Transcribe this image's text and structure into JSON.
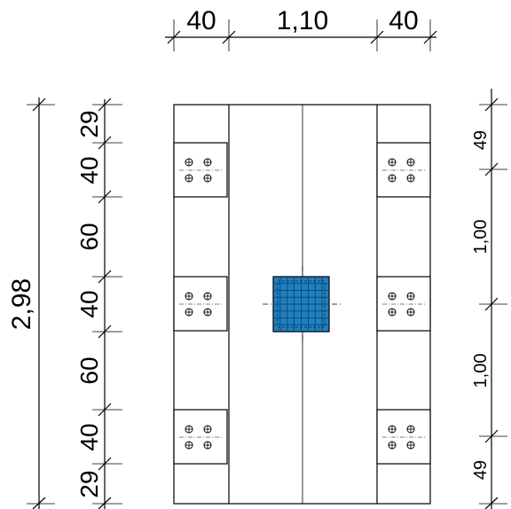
{
  "top_dimensions": [
    "40",
    "1,10",
    "40"
  ],
  "left_total": "2,98",
  "left_dimensions": [
    "29",
    "40",
    "60",
    "40",
    "60",
    "40",
    "29"
  ],
  "right_dimensions": [
    "49",
    "1,00",
    "1,00",
    "49"
  ],
  "colors": {
    "column_fill": "#1f7fbf",
    "column_grid": "#0b3f6a",
    "line": "#000000"
  }
}
